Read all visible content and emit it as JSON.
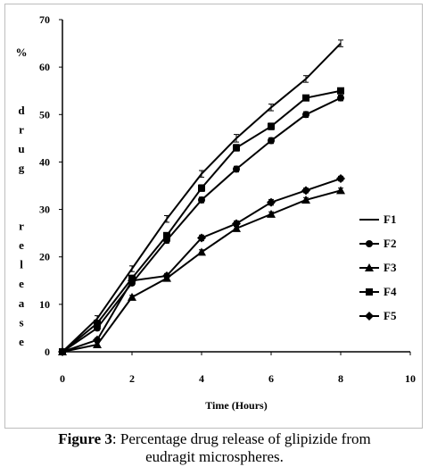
{
  "chart_data": {
    "type": "line",
    "xlabel": "Time (Hours)",
    "ylabel": "% drug release",
    "xlim": [
      0,
      10
    ],
    "ylim": [
      0,
      70
    ],
    "xticks": [
      0,
      2,
      4,
      6,
      8,
      10
    ],
    "yticks": [
      0,
      10,
      20,
      30,
      40,
      50,
      60,
      70
    ],
    "grid": false,
    "legend_position": "right",
    "x": [
      0,
      1,
      2,
      3,
      4,
      5,
      6,
      7,
      8
    ],
    "series": [
      {
        "name": "F1",
        "marker": "none",
        "values": [
          0,
          7,
          17.5,
          28,
          37.5,
          45,
          51.5,
          57.5,
          65
        ],
        "errors": [
          0,
          0.6,
          0.6,
          0.7,
          0.7,
          0.8,
          0.7,
          0.7,
          0.7
        ]
      },
      {
        "name": "F2",
        "marker": "circle",
        "values": [
          0,
          5,
          14.5,
          23.5,
          32,
          38.5,
          44.5,
          50,
          53.5
        ],
        "errors": [
          0,
          0.5,
          0.5,
          0.6,
          0.6,
          0.6,
          0.6,
          0.6,
          0.6
        ]
      },
      {
        "name": "F3",
        "marker": "triangle",
        "values": [
          0,
          1.5,
          11.5,
          15.5,
          21,
          26,
          29,
          32,
          34
        ],
        "errors": [
          0,
          0.4,
          0.4,
          0.5,
          0.5,
          0.5,
          0.5,
          0.5,
          0.5
        ]
      },
      {
        "name": "F4",
        "marker": "square",
        "values": [
          0,
          6,
          15.5,
          24.5,
          34.5,
          43,
          47.5,
          53.5,
          55
        ],
        "errors": [
          0,
          0.5,
          0.6,
          0.6,
          0.7,
          0.7,
          0.7,
          0.6,
          0.6
        ]
      },
      {
        "name": "F5",
        "marker": "diamond",
        "values": [
          0,
          2.5,
          15,
          16,
          24,
          27,
          31.5,
          34,
          36.5
        ],
        "errors": [
          0,
          0.4,
          0.5,
          0.5,
          0.6,
          0.6,
          0.6,
          0.5,
          0.5
        ]
      }
    ]
  },
  "caption": {
    "label": "Figure 3",
    "text": ": Percentage drug release of glipizide from",
    "text_line2": "eudragit microspheres."
  }
}
